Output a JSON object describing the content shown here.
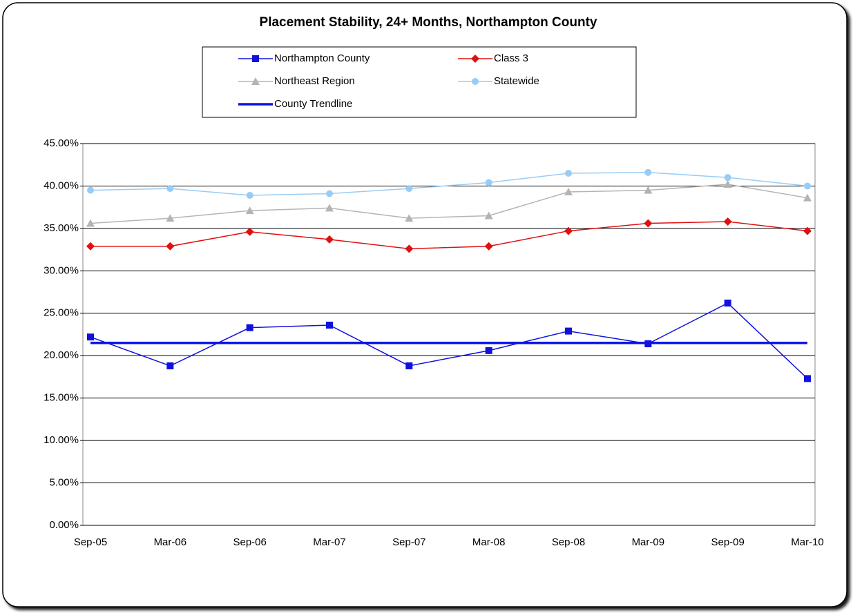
{
  "chart_data": {
    "type": "line",
    "title": "Placement Stability, 24+ Months, Northampton County",
    "categories": [
      "Sep-05",
      "Mar-06",
      "Sep-06",
      "Mar-07",
      "Sep-07",
      "Mar-08",
      "Sep-08",
      "Mar-09",
      "Sep-09",
      "Mar-10"
    ],
    "series": [
      {
        "name": "Northampton County",
        "color": "#1010e0",
        "marker": "square",
        "width": 1.5,
        "values": [
          22.2,
          18.8,
          23.3,
          23.6,
          18.8,
          20.6,
          22.9,
          21.4,
          26.2,
          17.3
        ]
      },
      {
        "name": "Class 3",
        "color": "#e01010",
        "marker": "diamond",
        "width": 1.5,
        "values": [
          32.9,
          32.9,
          34.6,
          33.7,
          32.6,
          32.9,
          34.7,
          35.6,
          35.8,
          34.7
        ]
      },
      {
        "name": "Northeast Region",
        "color": "#b4b4b4",
        "marker": "triangle",
        "width": 1.5,
        "values": [
          35.6,
          36.2,
          37.1,
          37.4,
          36.2,
          36.5,
          39.3,
          39.5,
          40.2,
          38.6
        ]
      },
      {
        "name": "Statewide",
        "color": "#99ccf5",
        "marker": "circle",
        "width": 1.5,
        "values": [
          39.5,
          39.7,
          38.9,
          39.1,
          39.7,
          40.4,
          41.5,
          41.6,
          41.0,
          40.0
        ]
      },
      {
        "name": "County Trendline",
        "color": "#0a14e6",
        "marker": "none",
        "width": 3.5,
        "values": [
          21.5,
          21.5,
          21.5,
          21.5,
          21.5,
          21.5,
          21.5,
          21.5,
          21.5,
          21.5
        ]
      }
    ],
    "ylim": [
      0,
      45
    ],
    "yticks": [
      {
        "value": 0,
        "label": "0.00%"
      },
      {
        "value": 5,
        "label": "5.00%"
      },
      {
        "value": 10,
        "label": "10.00%"
      },
      {
        "value": 15,
        "label": "15.00%"
      },
      {
        "value": 20,
        "label": "20.00%"
      },
      {
        "value": 25,
        "label": "25.00%"
      },
      {
        "value": 30,
        "label": "30.00%"
      },
      {
        "value": 35,
        "label": "35.00%"
      },
      {
        "value": 40,
        "label": "40.00%"
      },
      {
        "value": 45,
        "label": "45.00%"
      }
    ],
    "grid": true,
    "legend": "top"
  }
}
